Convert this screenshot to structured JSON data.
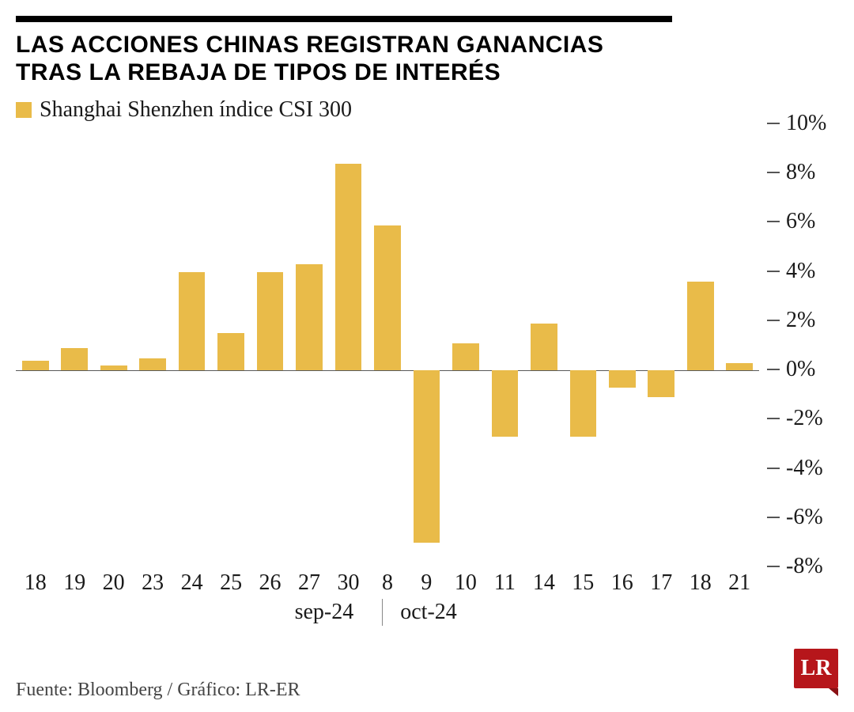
{
  "title_line1": "LAS ACCIONES CHINAS REGISTRAN GANANCIAS",
  "title_line2": "TRAS LA REBAJA DE TIPOS DE INTERÉS",
  "legend_label": "Shanghai Shenzhen índice CSI 300",
  "source": "Fuente: Bloomberg / Gráfico: LR-ER",
  "logo_text": "LR",
  "chart": {
    "type": "bar",
    "bar_color": "#e9bb49",
    "background_color": "#ffffff",
    "baseline_color": "#5a5a5a",
    "title_fontsize": 30,
    "label_fontsize": 28,
    "ylim": [
      -8,
      10
    ],
    "yticks": [
      10,
      8,
      6,
      4,
      2,
      0,
      -2,
      -4,
      -6,
      -8
    ],
    "ytick_suffix": "%",
    "bar_width_ratio": 0.68,
    "categories": [
      "18",
      "19",
      "20",
      "23",
      "24",
      "25",
      "26",
      "27",
      "30",
      "8",
      "9",
      "10",
      "11",
      "14",
      "15",
      "16",
      "17",
      "18",
      "21"
    ],
    "values": [
      0.4,
      0.9,
      0.2,
      0.5,
      4.0,
      1.5,
      4.0,
      4.3,
      8.4,
      5.9,
      -7.0,
      1.1,
      -2.7,
      1.9,
      -2.7,
      -0.7,
      -1.1,
      3.6,
      0.3
    ],
    "month_split_index": 9,
    "month_left": "sep-24",
    "month_right": "oct-24"
  },
  "colors": {
    "bar": "#e9bb49",
    "text": "#1a1a1a",
    "rule": "#000000",
    "logo_bg": "#b6161b"
  }
}
